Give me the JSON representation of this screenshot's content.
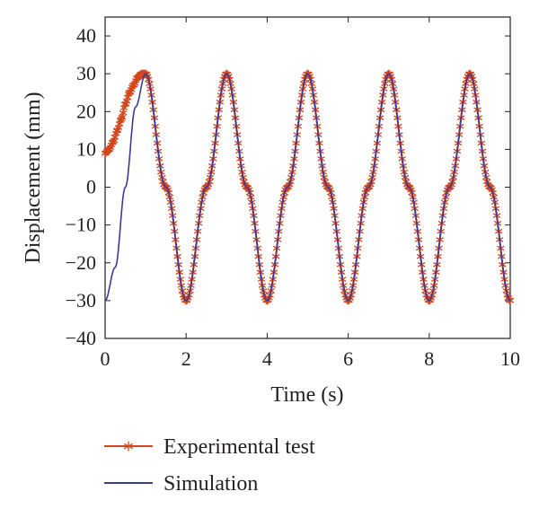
{
  "chart_data": {
    "type": "line",
    "title": "",
    "xlabel": "Time (s)",
    "ylabel": "Displacement (mm)",
    "xlim": [
      0,
      10
    ],
    "ylim": [
      -40,
      45
    ],
    "x_ticks": [
      0,
      2,
      4,
      6,
      8,
      10
    ],
    "y_ticks": [
      -40,
      -30,
      -20,
      -10,
      0,
      10,
      20,
      30,
      40
    ],
    "x_tick_labels": [
      "0",
      "2",
      "4",
      "6",
      "8",
      "10"
    ],
    "y_tick_labels": [
      "−40",
      "−30",
      "−20",
      "−10",
      "0",
      "10",
      "20",
      "30",
      "40"
    ],
    "grid": false,
    "legend_position": "bottom-left, below plot",
    "series": [
      {
        "name": "Experimental test",
        "color": "#d4451b",
        "marker": "asterisk",
        "x": [
          0,
          0.1,
          0.2,
          0.3,
          0.4,
          0.5,
          0.6,
          0.7,
          0.8,
          0.9,
          1.0,
          1.5,
          2.0,
          2.5,
          3.0,
          3.5,
          4.0,
          4.5,
          5.0,
          5.5,
          6.0,
          6.5,
          7.0,
          7.5,
          8.0,
          8.5,
          9.0,
          9.5,
          10.0
        ],
        "y": [
          9,
          10,
          12,
          15,
          18,
          22,
          25,
          27,
          29,
          30,
          30,
          0,
          -30,
          0,
          30,
          0,
          -30,
          0,
          30,
          0,
          -30,
          0,
          30,
          0,
          -30,
          0,
          30,
          0,
          -30
        ]
      },
      {
        "name": "Simulation",
        "color": "#3a3a9a",
        "marker": "none",
        "x": [
          0,
          0.25,
          0.5,
          0.75,
          1.0,
          1.5,
          2.0,
          2.5,
          3.0,
          3.5,
          4.0,
          4.5,
          5.0,
          5.5,
          6.0,
          6.5,
          7.0,
          7.5,
          8.0,
          8.5,
          9.0,
          9.5,
          10.0
        ],
        "y": [
          -30,
          -21.2,
          0,
          21.2,
          30,
          0,
          -30,
          0,
          30,
          0,
          -30,
          0,
          30,
          0,
          -30,
          0,
          30,
          0,
          -30,
          0,
          30,
          0,
          -30
        ]
      }
    ]
  }
}
